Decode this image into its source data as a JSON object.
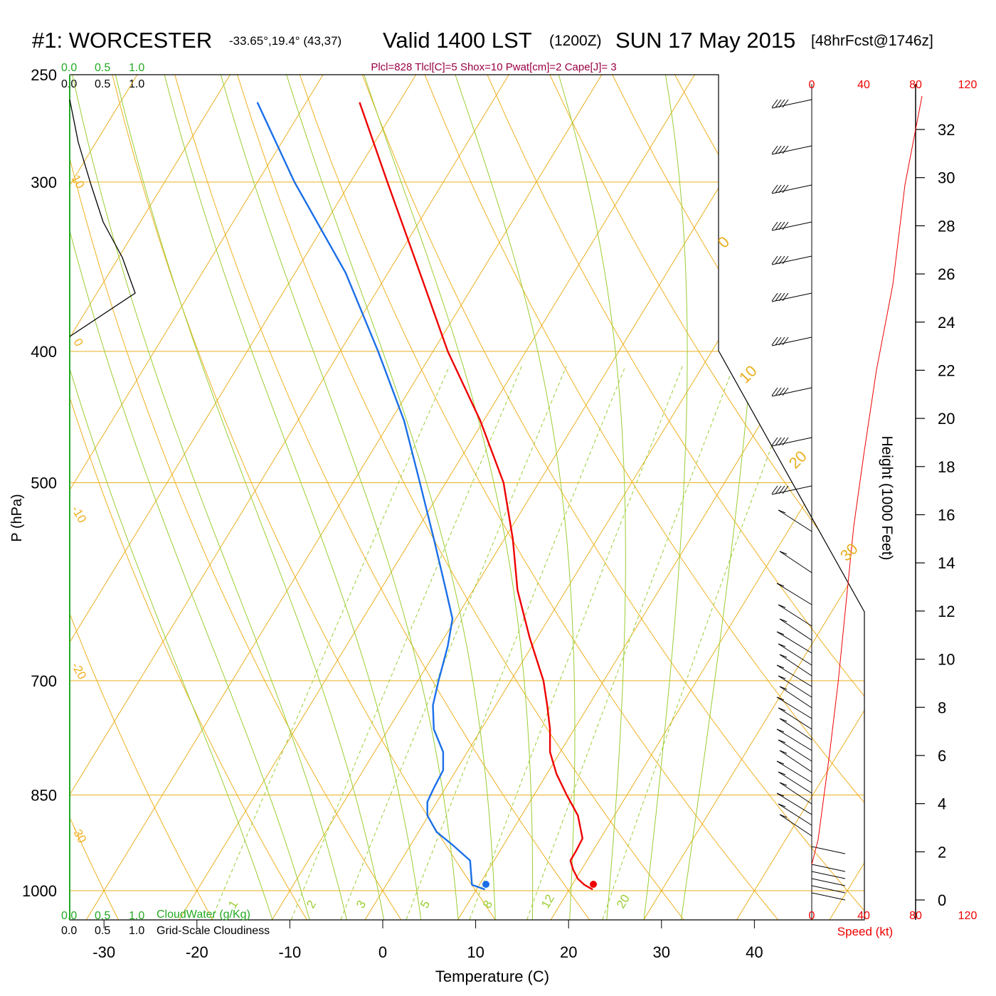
{
  "header": {
    "station": "#1: WORCESTER",
    "coords": "-33.65°,19.4° (43,37)",
    "valid": "Valid 1400 LST",
    "utc": "(1200Z)",
    "date": "SUN 17 May 2015",
    "forecast": "[48hrFcst@1746z]",
    "indices": "Plcl=828 Tlcl[C]=5 Shox=10 Pwat[cm]=2 Cape[J]= 3"
  },
  "labels": {
    "pressure_axis": "P (hPa)",
    "temperature_axis": "Temperature (C)",
    "height_axis": "Height (1000 Feet)",
    "speed_axis": "Speed (kt)",
    "cloudwater": "CloudWater (g/Kg)",
    "cloudiness": "Grid-Scale Cloudiness"
  },
  "colors": {
    "temperature": "#ee0000",
    "dewpoint": "#1a6fe8",
    "isotherm": "#e8b020",
    "dry_adiabat": "#f0b020",
    "moist_adiabat": "#9acd32",
    "mixing_ratio": "#9acd32",
    "cloudwater": "#22aa22",
    "cloudiness": "#000000",
    "speed": "#ee0000",
    "indices": "#990044"
  },
  "chart_data": {
    "type": "line",
    "skew_t": {
      "pressure_ticks": [
        "250",
        "300",
        "400",
        "500",
        "700",
        "850",
        "1000"
      ],
      "pressure_values": [
        250,
        300,
        400,
        500,
        700,
        850,
        1000
      ],
      "temperature_ticks": [
        "-30",
        "-20",
        "-10",
        "0",
        "10",
        "20",
        "30",
        "40"
      ],
      "temperature_values": [
        -30,
        -20,
        -10,
        0,
        10,
        20,
        30,
        40
      ],
      "temperature_lim": [
        -35,
        45
      ],
      "temperature_profile": [
        {
          "p": 998,
          "t": 22.6
        },
        {
          "p": 990,
          "t": 21.7
        },
        {
          "p": 980,
          "t": 21.0
        },
        {
          "p": 965,
          "t": 20.5
        },
        {
          "p": 950,
          "t": 20.2
        },
        {
          "p": 935,
          "t": 20.8
        },
        {
          "p": 915,
          "t": 21.5
        },
        {
          "p": 880,
          "t": 21.0
        },
        {
          "p": 850,
          "t": 19.8
        },
        {
          "p": 820,
          "t": 18.7
        },
        {
          "p": 790,
          "t": 18.0
        },
        {
          "p": 760,
          "t": 18.0
        },
        {
          "p": 730,
          "t": 17.7
        },
        {
          "p": 700,
          "t": 17.3
        },
        {
          "p": 650,
          "t": 15.8
        },
        {
          "p": 600,
          "t": 14.5
        },
        {
          "p": 550,
          "t": 14.0
        },
        {
          "p": 500,
          "t": 13.0
        },
        {
          "p": 450,
          "t": 10.5
        },
        {
          "p": 400,
          "t": 7.0
        },
        {
          "p": 350,
          "t": 4.0
        },
        {
          "p": 300,
          "t": 0.5
        },
        {
          "p": 262,
          "t": -2.5
        }
      ],
      "dewpoint_profile": [
        {
          "p": 998,
          "t": 11.0
        },
        {
          "p": 990,
          "t": 9.6
        },
        {
          "p": 970,
          "t": 9.5
        },
        {
          "p": 950,
          "t": 9.4
        },
        {
          "p": 925,
          "t": 7.5
        },
        {
          "p": 905,
          "t": 5.8
        },
        {
          "p": 880,
          "t": 4.8
        },
        {
          "p": 860,
          "t": 4.8
        },
        {
          "p": 840,
          "t": 5.5
        },
        {
          "p": 815,
          "t": 6.5
        },
        {
          "p": 790,
          "t": 6.5
        },
        {
          "p": 760,
          "t": 5.5
        },
        {
          "p": 730,
          "t": 5.4
        },
        {
          "p": 700,
          "t": 6.0
        },
        {
          "p": 660,
          "t": 7.0
        },
        {
          "p": 630,
          "t": 7.5
        },
        {
          "p": 600,
          "t": 6.8
        },
        {
          "p": 550,
          "t": 5.5
        },
        {
          "p": 500,
          "t": 4.0
        },
        {
          "p": 450,
          "t": 2.3
        },
        {
          "p": 400,
          "t": -0.5
        },
        {
          "p": 350,
          "t": -4.0
        },
        {
          "p": 300,
          "t": -9.5
        },
        {
          "p": 262,
          "t": -13.5
        }
      ],
      "isotherm_labels": [
        "0",
        "10",
        "20",
        "30"
      ],
      "left_labels": [
        "10",
        "0",
        "-10",
        "-20",
        "-30"
      ],
      "mixing_ratio_labels": [
        "1",
        "2",
        "3",
        "5",
        "8",
        "12",
        "20"
      ]
    },
    "height": {
      "ticks": [
        "0",
        "2",
        "4",
        "6",
        "8",
        "10",
        "12",
        "14",
        "16",
        "18",
        "20",
        "22",
        "24",
        "26",
        "28",
        "30",
        "32"
      ]
    },
    "speed": {
      "ticks": [
        "0",
        "40",
        "80",
        "120"
      ]
    },
    "cloud_scale": {
      "cloudwater_ticks": [
        "0.0",
        "0.5",
        "1.0"
      ],
      "cloudiness_ticks": [
        "0.0",
        "0.5",
        "1.0"
      ]
    }
  }
}
